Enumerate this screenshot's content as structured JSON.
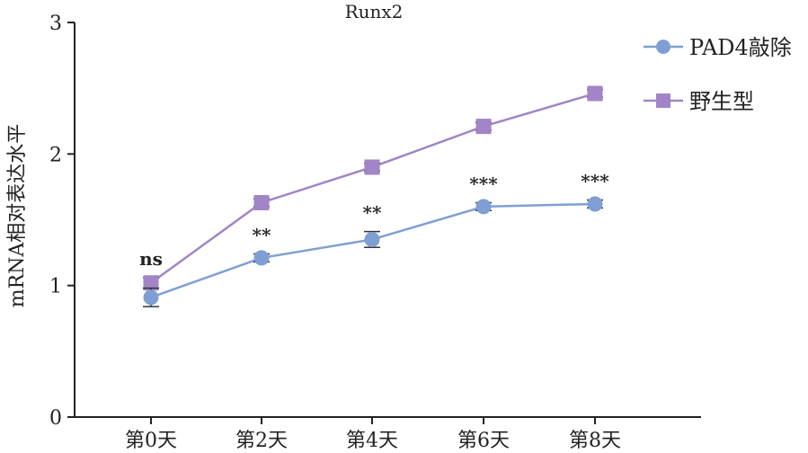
{
  "chart_data": {
    "type": "line",
    "title": "Runx2",
    "xlabel": "",
    "ylabel": "mRNA相对表达水平",
    "categories": [
      "第0天",
      "第2天",
      "第4天",
      "第6天",
      "第8天"
    ],
    "ylim": [
      0,
      3
    ],
    "yticks": [
      "0",
      "1",
      "2",
      "3"
    ],
    "grid": false,
    "legend_position": "top-right",
    "series": [
      {
        "name": "PAD4敲除",
        "color": "#7f9fd4",
        "marker": "circle",
        "values": [
          0.91,
          1.21,
          1.35,
          1.6,
          1.62
        ],
        "errors": [
          0.07,
          0.03,
          0.06,
          0.03,
          0.03
        ]
      },
      {
        "name": "野生型",
        "color": "#a185c6",
        "marker": "square",
        "values": [
          1.02,
          1.63,
          1.9,
          2.21,
          2.46
        ],
        "errors": [
          0.04,
          0.03,
          0.03,
          0.03,
          0.03
        ]
      }
    ],
    "annotations": [
      "ns",
      "**",
      "**",
      "***",
      "***"
    ]
  }
}
